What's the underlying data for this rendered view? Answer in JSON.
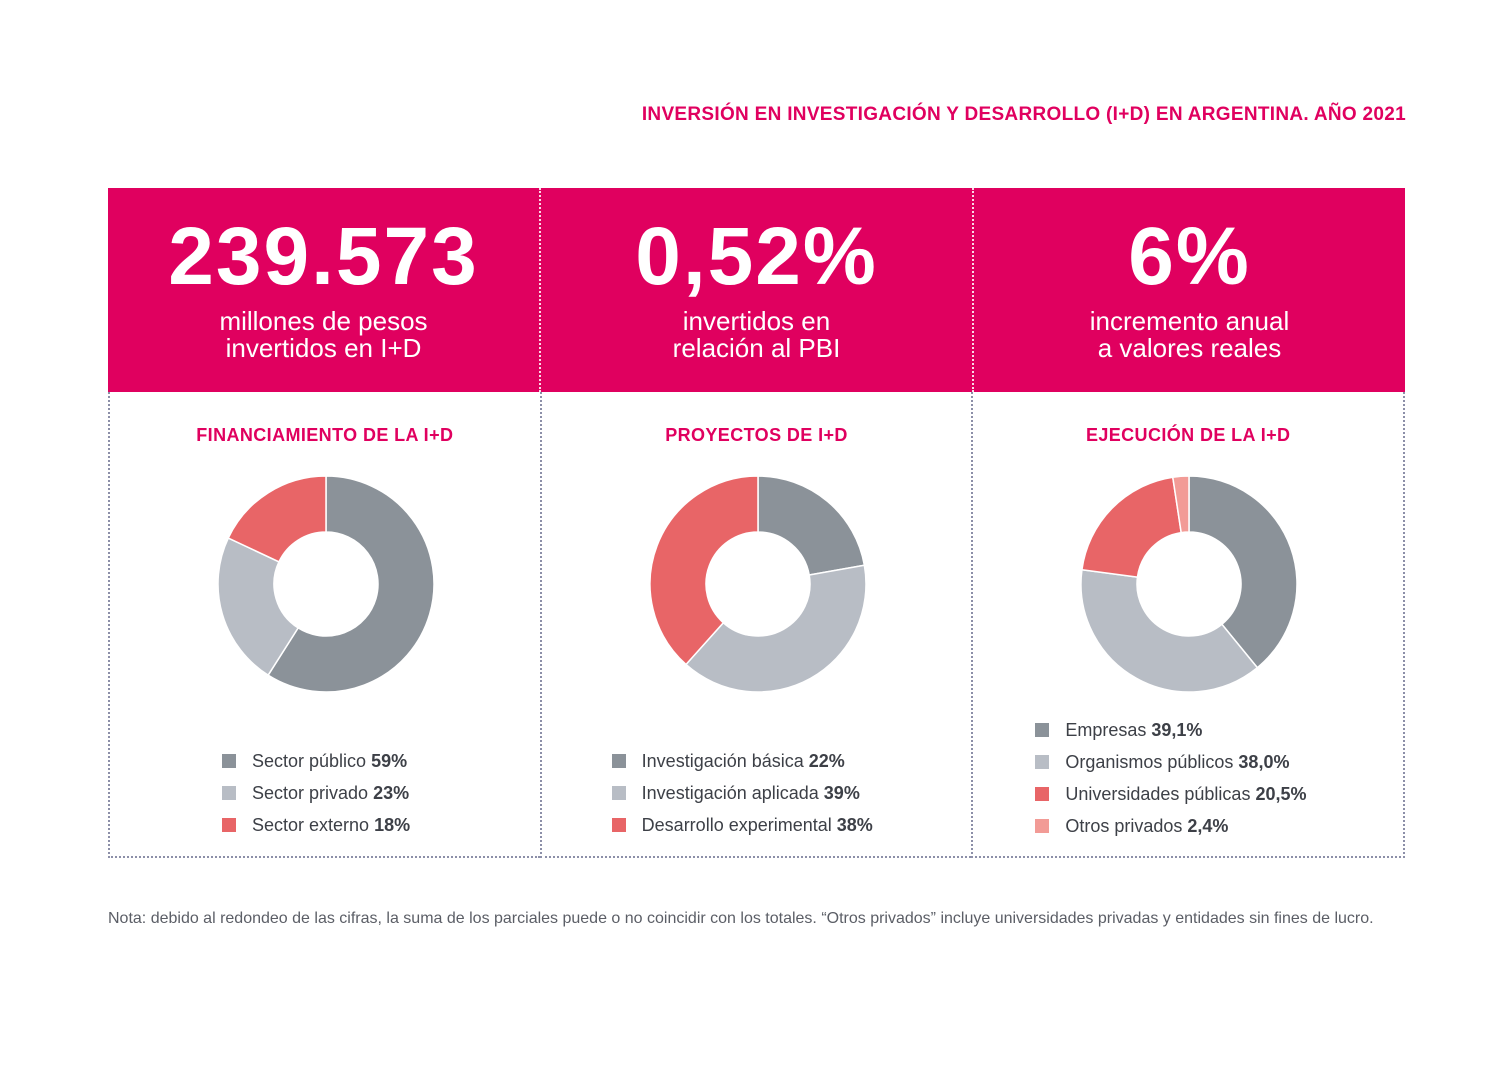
{
  "title": "INVERSIÓN EN INVESTIGACIÓN Y DESARROLLO (I+D) EN ARGENTINA. AÑO 2021",
  "kpis": [
    {
      "value": "239.573",
      "line1": "millones de pesos",
      "line2": "invertidos en I+D"
    },
    {
      "value": "0,52%",
      "line1": "invertidos en",
      "line2": "relación al PBI"
    },
    {
      "value": "6%",
      "line1": "incremento anual",
      "line2": "a valores reales"
    }
  ],
  "colors": {
    "brand": "#e0005f",
    "dark_gray": "#8b9299",
    "light_gray": "#b8bdc5",
    "coral": "#e86567",
    "salmon": "#f29b96"
  },
  "chart_data": [
    {
      "type": "pie",
      "donut": true,
      "title": "FINANCIAMIENTO DE LA I+D",
      "series": [
        {
          "name": "Sector público",
          "label": "59%",
          "value": 59,
          "color": "#8b9299"
        },
        {
          "name": "Sector privado",
          "label": "23%",
          "value": 23,
          "color": "#b8bdc5"
        },
        {
          "name": "Sector externo",
          "label": "18%",
          "value": 18,
          "color": "#e86567"
        }
      ]
    },
    {
      "type": "pie",
      "donut": true,
      "title": "PROYECTOS DE I+D",
      "series": [
        {
          "name": "Investigación básica",
          "label": "22%",
          "value": 22,
          "color": "#8b9299"
        },
        {
          "name": "Investigación aplicada",
          "label": "39%",
          "value": 39,
          "color": "#b8bdc5"
        },
        {
          "name": "Desarrollo experimental",
          "label": "38%",
          "value": 38,
          "color": "#e86567"
        }
      ]
    },
    {
      "type": "pie",
      "donut": true,
      "title": "EJECUCIÓN DE LA I+D",
      "series": [
        {
          "name": "Empresas",
          "label": "39,1%",
          "value": 39.1,
          "color": "#8b9299"
        },
        {
          "name": "Organismos públicos",
          "label": "38,0%",
          "value": 38.0,
          "color": "#b8bdc5"
        },
        {
          "name": "Universidades públicas",
          "label": "20,5%",
          "value": 20.5,
          "color": "#e86567"
        },
        {
          "name": "Otros privados",
          "label": "2,4%",
          "value": 2.4,
          "color": "#f29b96"
        }
      ]
    }
  ],
  "note": "Nota: debido al redondeo de las cifras, la suma de los parciales puede o no coincidir con los totales. “Otros privados” incluye universidades privadas y entidades sin fines de lucro."
}
